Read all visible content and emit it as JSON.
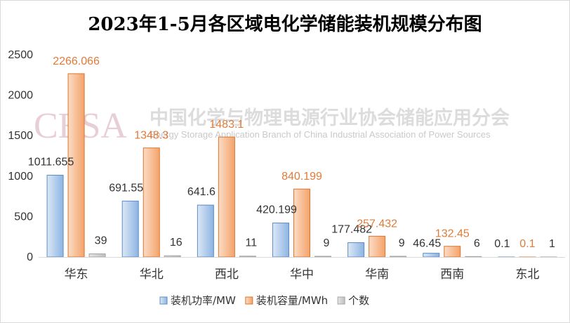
{
  "watermark": {
    "logo": "CESA",
    "org_cn": "中国化学与物理电源行业协会储能应用分会",
    "org_en": "Energy Storage Application Branch of China Industrial Association of Power Sources"
  },
  "colors": {
    "power": "#8db4e2",
    "capacity": "#f4a36a",
    "count": "#bfbfbf",
    "capacity_label": "#e07b39"
  },
  "chart_data": {
    "type": "bar",
    "title": "2023年1-5月各区域电化学储能装机规模分布图",
    "categories": [
      "华东",
      "华北",
      "西北",
      "华中",
      "华南",
      "西南",
      "东北"
    ],
    "series": [
      {
        "name": "装机功率/MW",
        "values": [
          1011.655,
          691.55,
          641.6,
          420.199,
          177.482,
          46.45,
          0.1
        ],
        "labels": [
          "1011.655",
          "691.55",
          "641.6",
          "420.199",
          "177.482",
          "46.45",
          "0.1"
        ]
      },
      {
        "name": "装机容量/MWh",
        "values": [
          2266.066,
          1348.3,
          1483.1,
          840.199,
          257.432,
          132.45,
          0.1
        ],
        "labels": [
          "2266.066",
          "1348.3",
          "1483.1",
          "840.199",
          "257.432",
          "132.45",
          "0.1"
        ]
      },
      {
        "name": "个数",
        "values": [
          39,
          16,
          11,
          9,
          9,
          6,
          1
        ],
        "labels": [
          "39",
          "16",
          "11",
          "9",
          "9",
          "6",
          "1"
        ]
      }
    ],
    "yticks": [
      "0",
      "500",
      "1000",
      "1500",
      "2000",
      "2500"
    ],
    "ylim": [
      0,
      2500
    ],
    "grid": false,
    "legend": "bottom"
  }
}
